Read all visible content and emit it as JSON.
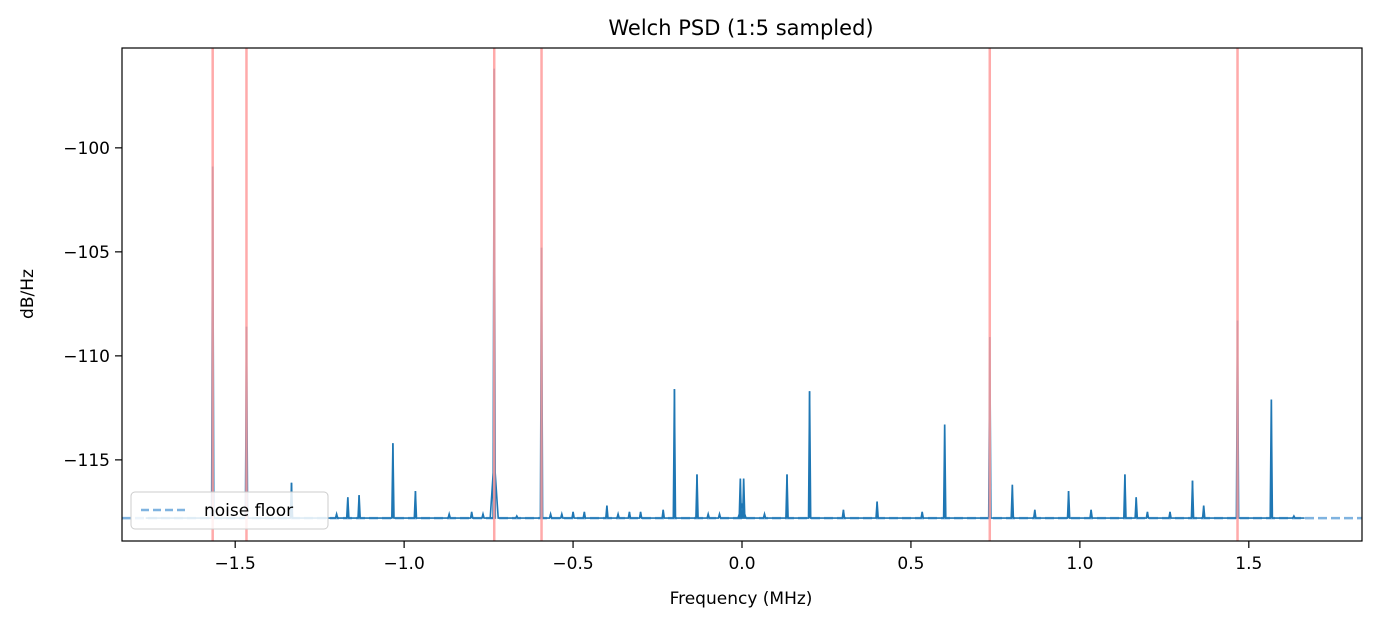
{
  "chart_data": {
    "type": "line",
    "title": "Welch PSD (1:5 sampled)",
    "xlabel": "Frequency (MHz)",
    "ylabel": "dB/Hz",
    "xlim": [
      -1.835,
      1.835
    ],
    "ylim": [
      -118.9,
      -95.2
    ],
    "x_ticks": [
      -1.5,
      -1.0,
      -0.5,
      0.0,
      0.5,
      1.0,
      1.5
    ],
    "x_tick_labels": [
      "−1.5",
      "−1.0",
      "−0.5",
      "0.0",
      "0.5",
      "1.0",
      "1.5"
    ],
    "y_ticks": [
      -100,
      -105,
      -110,
      -115
    ],
    "y_tick_labels": [
      "−100",
      "−105",
      "−110",
      "−115"
    ],
    "grid": false,
    "legend": {
      "position": "lower-left",
      "entries": [
        "noise floor"
      ]
    },
    "series": [
      {
        "color": "#1f77b4",
        "x_range": [
          -1.765,
          1.665
        ],
        "baseline": -117.8,
        "peaks": [
          {
            "f": -1.5666,
            "db": -100.9
          },
          {
            "f": -1.4666,
            "db": -108.6
          },
          {
            "f": -1.3333,
            "db": -116.1
          },
          {
            "f": -1.2,
            "db": -117.6
          },
          {
            "f": -1.1666,
            "db": -116.8
          },
          {
            "f": -1.1333,
            "db": -116.7
          },
          {
            "f": -1.0333,
            "db": -114.2
          },
          {
            "f": -0.9666,
            "db": -116.5
          },
          {
            "f": -0.8666,
            "db": -117.6
          },
          {
            "f": -0.8,
            "db": -117.5
          },
          {
            "f": -0.7333,
            "db": -96.2
          },
          {
            "f": -0.7666,
            "db": -117.6
          },
          {
            "f": -0.6666,
            "db": -117.7
          },
          {
            "f": -0.5933,
            "db": -104.8
          },
          {
            "f": -0.5666,
            "db": -117.6
          },
          {
            "f": -0.5333,
            "db": -117.6
          },
          {
            "f": -0.5,
            "db": -117.5
          },
          {
            "f": -0.4666,
            "db": -117.5
          },
          {
            "f": -0.4,
            "db": -117.2
          },
          {
            "f": -0.3666,
            "db": -117.6
          },
          {
            "f": -0.3333,
            "db": -117.5
          },
          {
            "f": -0.3,
            "db": -117.5
          },
          {
            "f": -0.2333,
            "db": -117.4
          },
          {
            "f": -0.2,
            "db": -111.6
          },
          {
            "f": -0.1333,
            "db": -115.7
          },
          {
            "f": -0.1,
            "db": -117.6
          },
          {
            "f": -0.0666,
            "db": -117.6
          },
          {
            "f": -0.005,
            "db": -115.9
          },
          {
            "f": 0.005,
            "db": -115.9
          },
          {
            "f": 0.0666,
            "db": -117.6
          },
          {
            "f": 0.1333,
            "db": -115.7
          },
          {
            "f": 0.2,
            "db": -111.7
          },
          {
            "f": 0.3,
            "db": -117.4
          },
          {
            "f": 0.4,
            "db": -117.0
          },
          {
            "f": 0.5333,
            "db": -117.5
          },
          {
            "f": 0.6,
            "db": -113.3
          },
          {
            "f": 0.7333,
            "db": -109.1
          },
          {
            "f": 0.8,
            "db": -116.2
          },
          {
            "f": 0.8666,
            "db": -117.4
          },
          {
            "f": 0.9666,
            "db": -116.5
          },
          {
            "f": 1.0333,
            "db": -117.4
          },
          {
            "f": 1.1333,
            "db": -115.7
          },
          {
            "f": 1.1666,
            "db": -116.8
          },
          {
            "f": 1.2,
            "db": -117.5
          },
          {
            "f": 1.2666,
            "db": -117.5
          },
          {
            "f": 1.3333,
            "db": -116.0
          },
          {
            "f": 1.3666,
            "db": -117.2
          },
          {
            "f": 1.4666,
            "db": -108.3
          },
          {
            "f": 1.5666,
            "db": -112.1
          },
          {
            "f": 1.6333,
            "db": -117.7
          }
        ],
        "broad_features": [
          {
            "f": -0.7333,
            "db": -114.9,
            "kind": "skirt"
          },
          {
            "f": 0.0,
            "db": -117.2,
            "kind": "bump"
          }
        ]
      },
      {
        "name": "noise floor",
        "color": "#7fb3e0",
        "style": "dashed",
        "y": -117.8
      }
    ],
    "vlines": {
      "color": "#ff9b9b",
      "x": [
        -1.5666,
        -1.4666,
        -0.7333,
        -0.5933,
        0.7333,
        1.4666
      ]
    }
  }
}
